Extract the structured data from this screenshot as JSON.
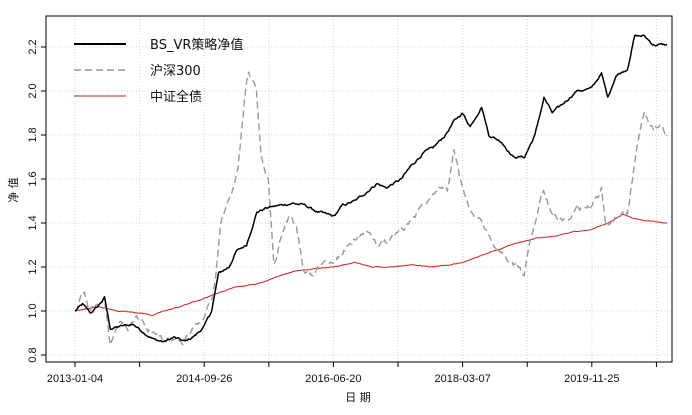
{
  "chart_data": {
    "type": "line",
    "title": "",
    "xlabel": "日 期",
    "ylabel": "净 值",
    "x_tick_labels": [
      "2013-01-04",
      "2014-09-26",
      "2016-06-20",
      "2018-03-07",
      "2019-11-25"
    ],
    "y_ticks": [
      0.8,
      1.0,
      1.2,
      1.4,
      1.6,
      1.8,
      2.0,
      2.2
    ],
    "y_tick_labels": [
      "0.8",
      "1.0",
      "1.2",
      "1.4",
      "1.6",
      "1.8",
      "2.0",
      "2.2"
    ],
    "xlim": [
      "2013-01-04",
      "2020-11-30"
    ],
    "ylim": [
      0.78,
      2.27
    ],
    "grid": true,
    "legend_position": "top-left",
    "series": [
      {
        "name": "BS_VR策略净值",
        "color": "#000000",
        "style": "solid",
        "points": [
          [
            "2013-01-04",
            1.0
          ],
          [
            "2013-02-10",
            1.03
          ],
          [
            "2013-03-20",
            0.99
          ],
          [
            "2013-04-25",
            1.02
          ],
          [
            "2013-05-28",
            1.06
          ],
          [
            "2013-06-25",
            0.92
          ],
          [
            "2013-08-15",
            0.93
          ],
          [
            "2013-10-15",
            0.94
          ],
          [
            "2013-12-10",
            0.9
          ],
          [
            "2014-01-25",
            0.87
          ],
          [
            "2014-03-15",
            0.86
          ],
          [
            "2014-05-01",
            0.88
          ],
          [
            "2014-06-25",
            0.86
          ],
          [
            "2014-08-15",
            0.89
          ],
          [
            "2014-09-26",
            0.93
          ],
          [
            "2014-11-01",
            1.0
          ],
          [
            "2014-12-05",
            1.17
          ],
          [
            "2015-01-25",
            1.2
          ],
          [
            "2015-03-01",
            1.27
          ],
          [
            "2015-04-20",
            1.3
          ],
          [
            "2015-06-10",
            1.45
          ],
          [
            "2015-08-01",
            1.47
          ],
          [
            "2015-10-01",
            1.48
          ],
          [
            "2015-12-01",
            1.49
          ],
          [
            "2016-02-01",
            1.48
          ],
          [
            "2016-04-01",
            1.45
          ],
          [
            "2016-06-20",
            1.43
          ],
          [
            "2016-08-01",
            1.48
          ],
          [
            "2016-10-01",
            1.5
          ],
          [
            "2016-11-25",
            1.54
          ],
          [
            "2017-01-15",
            1.58
          ],
          [
            "2017-03-01",
            1.56
          ],
          [
            "2017-05-15",
            1.6
          ],
          [
            "2017-07-01",
            1.66
          ],
          [
            "2017-09-01",
            1.72
          ],
          [
            "2017-10-15",
            1.74
          ],
          [
            "2017-12-15",
            1.8
          ],
          [
            "2018-01-25",
            1.86
          ],
          [
            "2018-03-07",
            1.9
          ],
          [
            "2018-04-15",
            1.84
          ],
          [
            "2018-06-10",
            1.93
          ],
          [
            "2018-07-15",
            1.8
          ],
          [
            "2018-09-15",
            1.77
          ],
          [
            "2018-11-10",
            1.7
          ],
          [
            "2019-01-05",
            1.7
          ],
          [
            "2019-02-25",
            1.8
          ],
          [
            "2019-04-10",
            1.97
          ],
          [
            "2019-05-20",
            1.9
          ],
          [
            "2019-07-10",
            1.94
          ],
          [
            "2019-09-15",
            2.0
          ],
          [
            "2019-11-25",
            2.01
          ],
          [
            "2020-01-15",
            2.08
          ],
          [
            "2020-02-15",
            1.97
          ],
          [
            "2020-03-25",
            2.07
          ],
          [
            "2020-05-20",
            2.1
          ],
          [
            "2020-06-25",
            2.25
          ],
          [
            "2020-08-10",
            2.25
          ],
          [
            "2020-09-25",
            2.21
          ],
          [
            "2020-11-30",
            2.21
          ]
        ]
      },
      {
        "name": "沪深300",
        "color": "#999999",
        "style": "dashed",
        "points": [
          [
            "2013-01-04",
            1.0
          ],
          [
            "2013-02-01",
            1.05
          ],
          [
            "2013-02-18",
            1.08
          ],
          [
            "2013-03-10",
            1.0
          ],
          [
            "2013-04-20",
            1.02
          ],
          [
            "2013-05-28",
            1.05
          ],
          [
            "2013-06-25",
            0.85
          ],
          [
            "2013-08-10",
            0.95
          ],
          [
            "2013-09-20",
            0.92
          ],
          [
            "2013-11-01",
            0.98
          ],
          [
            "2013-12-20",
            0.92
          ],
          [
            "2014-03-15",
            0.87
          ],
          [
            "2014-06-15",
            0.86
          ],
          [
            "2014-08-10",
            0.93
          ],
          [
            "2014-09-26",
            0.98
          ],
          [
            "2014-10-25",
            1.03
          ],
          [
            "2014-11-20",
            1.15
          ],
          [
            "2014-12-15",
            1.4
          ],
          [
            "2015-01-25",
            1.5
          ],
          [
            "2015-03-10",
            1.65
          ],
          [
            "2015-04-20",
            2.05
          ],
          [
            "2015-05-01",
            2.1
          ],
          [
            "2015-06-08",
            2.0
          ],
          [
            "2015-07-01",
            1.7
          ],
          [
            "2015-08-05",
            1.6
          ],
          [
            "2015-09-01",
            1.2
          ],
          [
            "2015-10-10",
            1.35
          ],
          [
            "2015-11-15",
            1.43
          ],
          [
            "2015-12-20",
            1.38
          ],
          [
            "2016-01-25",
            1.18
          ],
          [
            "2016-03-01",
            1.17
          ],
          [
            "2016-05-01",
            1.22
          ],
          [
            "2016-06-20",
            1.21
          ],
          [
            "2016-08-01",
            1.27
          ],
          [
            "2016-10-01",
            1.33
          ],
          [
            "2016-12-01",
            1.37
          ],
          [
            "2017-01-15",
            1.3
          ],
          [
            "2017-03-15",
            1.32
          ],
          [
            "2017-06-01",
            1.38
          ],
          [
            "2017-08-01",
            1.45
          ],
          [
            "2017-10-01",
            1.53
          ],
          [
            "2017-11-20",
            1.58
          ],
          [
            "2017-12-25",
            1.55
          ],
          [
            "2018-01-25",
            1.73
          ],
          [
            "2018-03-07",
            1.55
          ],
          [
            "2018-04-20",
            1.45
          ],
          [
            "2018-06-20",
            1.38
          ],
          [
            "2018-08-15",
            1.3
          ],
          [
            "2018-10-20",
            1.22
          ],
          [
            "2019-01-03",
            1.18
          ],
          [
            "2019-02-20",
            1.4
          ],
          [
            "2019-04-08",
            1.55
          ],
          [
            "2019-05-15",
            1.44
          ],
          [
            "2019-06-25",
            1.42
          ],
          [
            "2019-08-15",
            1.4
          ],
          [
            "2019-09-20",
            1.46
          ],
          [
            "2019-11-25",
            1.47
          ],
          [
            "2020-01-15",
            1.55
          ],
          [
            "2020-02-05",
            1.4
          ],
          [
            "2020-03-25",
            1.42
          ],
          [
            "2020-05-20",
            1.45
          ],
          [
            "2020-07-10",
            1.75
          ],
          [
            "2020-08-10",
            1.9
          ],
          [
            "2020-09-25",
            1.82
          ],
          [
            "2020-10-25",
            1.85
          ],
          [
            "2020-11-30",
            1.8
          ]
        ]
      },
      {
        "name": "中证全债",
        "color": "#cc1f1a",
        "style": "solid",
        "points": [
          [
            "2013-01-04",
            1.0
          ],
          [
            "2013-05-01",
            1.02
          ],
          [
            "2013-08-01",
            1.0
          ],
          [
            "2013-11-20",
            0.99
          ],
          [
            "2014-01-15",
            0.98
          ],
          [
            "2014-03-15",
            1.0
          ],
          [
            "2014-06-01",
            1.02
          ],
          [
            "2014-09-01",
            1.05
          ],
          [
            "2014-12-01",
            1.08
          ],
          [
            "2015-03-01",
            1.11
          ],
          [
            "2015-06-01",
            1.12
          ],
          [
            "2015-09-01",
            1.15
          ],
          [
            "2015-12-01",
            1.18
          ],
          [
            "2016-03-01",
            1.19
          ],
          [
            "2016-06-20",
            1.2
          ],
          [
            "2016-10-01",
            1.22
          ],
          [
            "2016-12-25",
            1.2
          ],
          [
            "2017-04-01",
            1.2
          ],
          [
            "2017-07-01",
            1.21
          ],
          [
            "2017-10-01",
            1.2
          ],
          [
            "2018-01-15",
            1.21
          ],
          [
            "2018-03-07",
            1.22
          ],
          [
            "2018-06-01",
            1.25
          ],
          [
            "2018-09-01",
            1.28
          ],
          [
            "2018-12-01",
            1.31
          ],
          [
            "2019-03-01",
            1.33
          ],
          [
            "2019-06-01",
            1.34
          ],
          [
            "2019-09-01",
            1.36
          ],
          [
            "2019-11-25",
            1.37
          ],
          [
            "2020-02-15",
            1.4
          ],
          [
            "2020-04-30",
            1.44
          ],
          [
            "2020-06-15",
            1.42
          ],
          [
            "2020-09-01",
            1.41
          ],
          [
            "2020-11-30",
            1.4
          ]
        ]
      }
    ]
  }
}
